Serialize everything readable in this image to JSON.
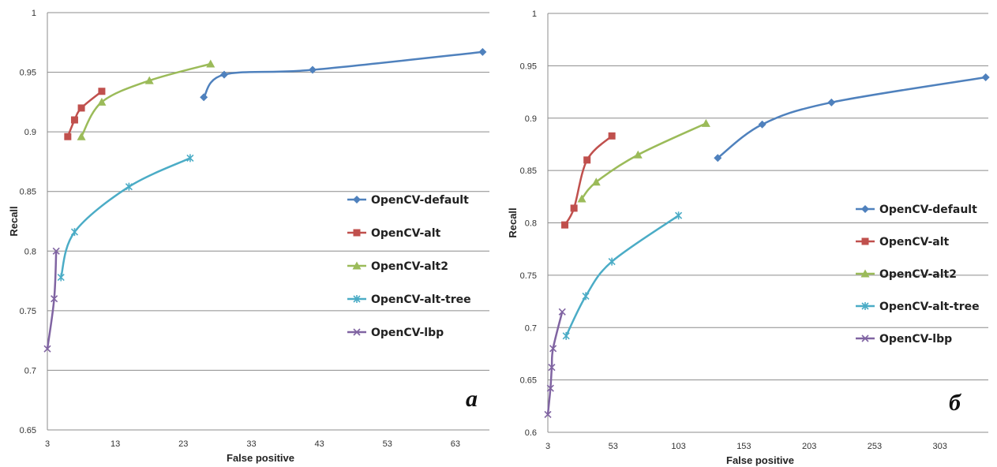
{
  "chart_data": [
    {
      "type": "line",
      "panel_label": "a",
      "xlabel": "False positive",
      "ylabel": "Recall",
      "x_ticks": [
        3,
        13,
        23,
        33,
        43,
        53,
        63
      ],
      "y_ticks": [
        0.65,
        0.7,
        0.75,
        0.8,
        0.85,
        0.9,
        0.95,
        1
      ],
      "xlim": [
        3,
        68
      ],
      "ylim": [
        0.65,
        1
      ],
      "grid": "horizontal",
      "legend_position": "right",
      "series": [
        {
          "name": "OpenCV-default",
          "color": "#4f81bd",
          "marker": "diamond",
          "x": [
            26,
            29,
            42,
            67
          ],
          "y": [
            0.929,
            0.948,
            0.952,
            0.967
          ]
        },
        {
          "name": "OpenCV-alt",
          "color": "#c0504d",
          "marker": "square",
          "x": [
            6,
            7,
            8,
            11
          ],
          "y": [
            0.896,
            0.91,
            0.92,
            0.934
          ]
        },
        {
          "name": "OpenCV-alt2",
          "color": "#9bbb59",
          "marker": "triangle",
          "x": [
            8,
            11,
            18,
            27
          ],
          "y": [
            0.896,
            0.925,
            0.943,
            0.957
          ]
        },
        {
          "name": "OpenCV-alt-tree",
          "color": "#4bacc6",
          "marker": "x-star",
          "x": [
            5,
            7,
            15,
            24
          ],
          "y": [
            0.778,
            0.816,
            0.854,
            0.878
          ]
        },
        {
          "name": "OpenCV-lbp",
          "color": "#8064a2",
          "marker": "x",
          "x": [
            3,
            4,
            4.3
          ],
          "y": [
            0.718,
            0.76,
            0.8
          ]
        }
      ]
    },
    {
      "type": "line",
      "panel_label": "б",
      "xlabel": "False positive",
      "ylabel": "Recall",
      "x_ticks": [
        3,
        53,
        103,
        153,
        203,
        253,
        303
      ],
      "y_ticks": [
        0.6,
        0.65,
        0.7,
        0.75,
        0.8,
        0.85,
        0.9,
        0.95,
        1
      ],
      "xlim": [
        3,
        340
      ],
      "ylim": [
        0.6,
        1
      ],
      "grid": "horizontal",
      "legend_position": "right",
      "series": [
        {
          "name": "OpenCV-default",
          "color": "#4f81bd",
          "marker": "diamond",
          "x": [
            133,
            167,
            220,
            338
          ],
          "y": [
            0.862,
            0.894,
            0.915,
            0.939
          ]
        },
        {
          "name": "OpenCV-alt",
          "color": "#c0504d",
          "marker": "square",
          "x": [
            16,
            23,
            33,
            52
          ],
          "y": [
            0.798,
            0.814,
            0.86,
            0.883
          ]
        },
        {
          "name": "OpenCV-alt2",
          "color": "#9bbb59",
          "marker": "triangle",
          "x": [
            29,
            40,
            72,
            124
          ],
          "y": [
            0.823,
            0.839,
            0.865,
            0.895
          ]
        },
        {
          "name": "OpenCV-alt-tree",
          "color": "#4bacc6",
          "marker": "x-star",
          "x": [
            17,
            32,
            52,
            103
          ],
          "y": [
            0.692,
            0.73,
            0.763,
            0.807
          ]
        },
        {
          "name": "OpenCV-lbp",
          "color": "#8064a2",
          "marker": "x",
          "x": [
            3,
            5,
            6,
            7,
            14
          ],
          "y": [
            0.617,
            0.642,
            0.662,
            0.68,
            0.715
          ]
        }
      ]
    }
  ]
}
